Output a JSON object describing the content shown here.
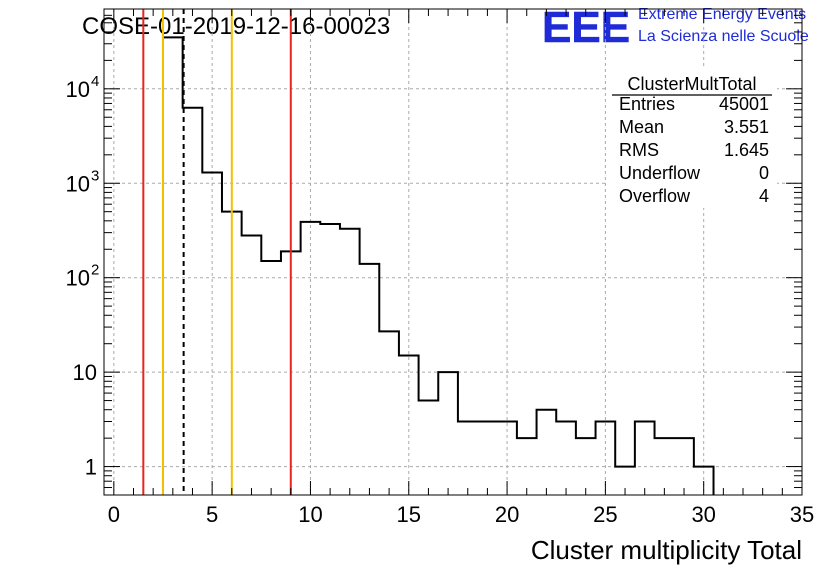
{
  "header": {
    "title": "COSE-01-2019-12-16-00023",
    "logo_text": "EEE",
    "logo_line1": "Extreme Energy Events",
    "logo_line2": "La Scienza nelle Scuole"
  },
  "colors": {
    "histogram": "#000000",
    "red_line": "#e8251f",
    "yellow_line": "#f2c200",
    "grid": "#aaaaaa",
    "logo": "#1f2bd6"
  },
  "stats": {
    "name": "ClusterMultTotal",
    "rows": [
      {
        "label": "Entries",
        "value": "45001"
      },
      {
        "label": "Mean",
        "value": "3.551"
      },
      {
        "label": "RMS",
        "value": "1.645"
      },
      {
        "label": "Underflow",
        "value": "0"
      },
      {
        "label": "Overflow",
        "value": "4"
      }
    ]
  },
  "chart_data": {
    "type": "histogram",
    "title": "COSE-01-2019-12-16-00023",
    "xlabel": "Cluster multiplicity Total",
    "ylabel": "",
    "xlim": [
      -0.5,
      35
    ],
    "ylim": [
      0.5,
      70000
    ],
    "yscale": "log",
    "grid": true,
    "x_ticks": [
      0,
      5,
      10,
      15,
      20,
      25,
      30,
      35
    ],
    "y_ticks": [
      {
        "value": 1,
        "label": "1"
      },
      {
        "value": 10,
        "label": "10"
      },
      {
        "value": 100,
        "label": "10",
        "exp": "2"
      },
      {
        "value": 1000,
        "label": "10",
        "exp": "3"
      },
      {
        "value": 10000,
        "label": "10",
        "exp": "4"
      }
    ],
    "bin_edges": [
      2.5,
      3.5,
      4.5,
      5.5,
      6.5,
      7.5,
      8.5,
      9.5,
      10.5,
      11.5,
      12.5,
      13.5,
      14.5,
      15.5,
      16.5,
      17.5,
      18.5,
      19.5,
      20.5,
      21.5,
      22.5,
      23.5,
      24.5,
      25.5,
      26.5,
      27.5,
      28.5,
      29.5,
      30.5
    ],
    "counts": [
      35000,
      6300,
      1300,
      500,
      280,
      150,
      190,
      390,
      370,
      330,
      140,
      27,
      15,
      5,
      10,
      3,
      3,
      3,
      2,
      4,
      3,
      2,
      3,
      1,
      3,
      2,
      2,
      1
    ],
    "vertical_lines": [
      {
        "x": 1.5,
        "color": "red",
        "style": "solid"
      },
      {
        "x": 9.0,
        "color": "red",
        "style": "solid"
      },
      {
        "x": 2.5,
        "color": "yellow",
        "style": "solid"
      },
      {
        "x": 6.0,
        "color": "yellow",
        "style": "solid"
      },
      {
        "x": 3.55,
        "color": "black",
        "style": "dashed"
      }
    ],
    "legend_placement": "top-right"
  }
}
